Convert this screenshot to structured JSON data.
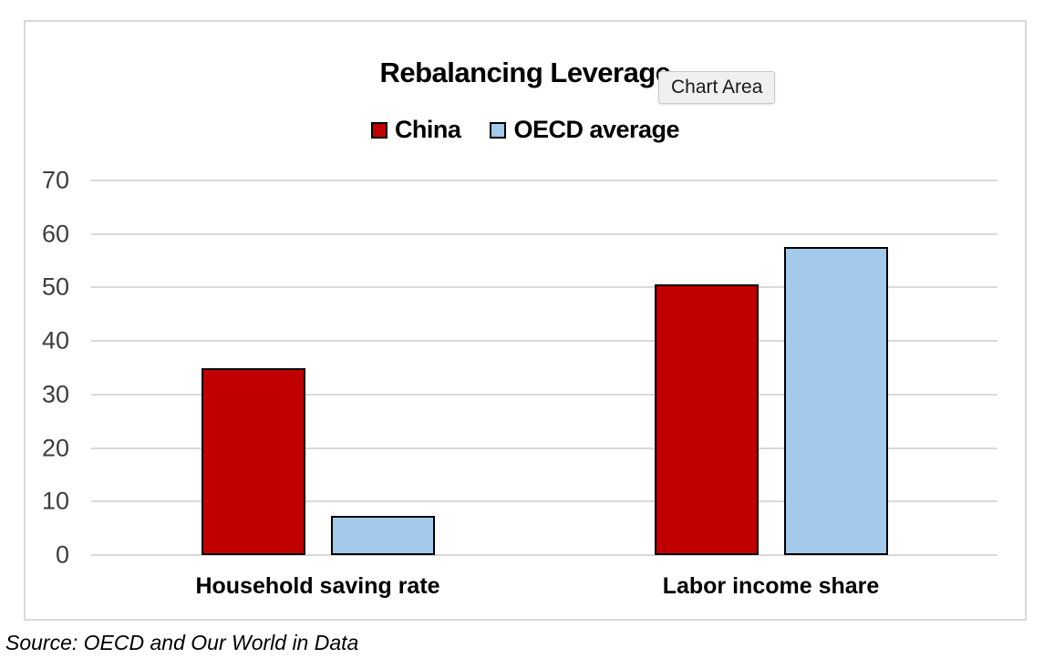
{
  "page": {
    "source_note": "Source: OECD and Our World in Data"
  },
  "tooltip": {
    "label": "Chart Area"
  },
  "chart_data": {
    "type": "bar",
    "title": "Rebalancing Leverage",
    "categories": [
      "Household saving rate",
      "Labor income share"
    ],
    "series": [
      {
        "name": "China",
        "color": "#C00000",
        "values": [
          35,
          50.6
        ]
      },
      {
        "name": "OECD average",
        "color": "#A4C9EA",
        "values": [
          7.3,
          57.5
        ]
      }
    ],
    "xlabel": "",
    "ylabel": "",
    "ylim": [
      0,
      70
    ],
    "yticks": [
      0,
      10,
      20,
      30,
      40,
      50,
      60,
      70
    ],
    "grid": true,
    "gridline_color": "#D9D9D9",
    "bar_border_color": "#000000",
    "legend_position": "top"
  }
}
